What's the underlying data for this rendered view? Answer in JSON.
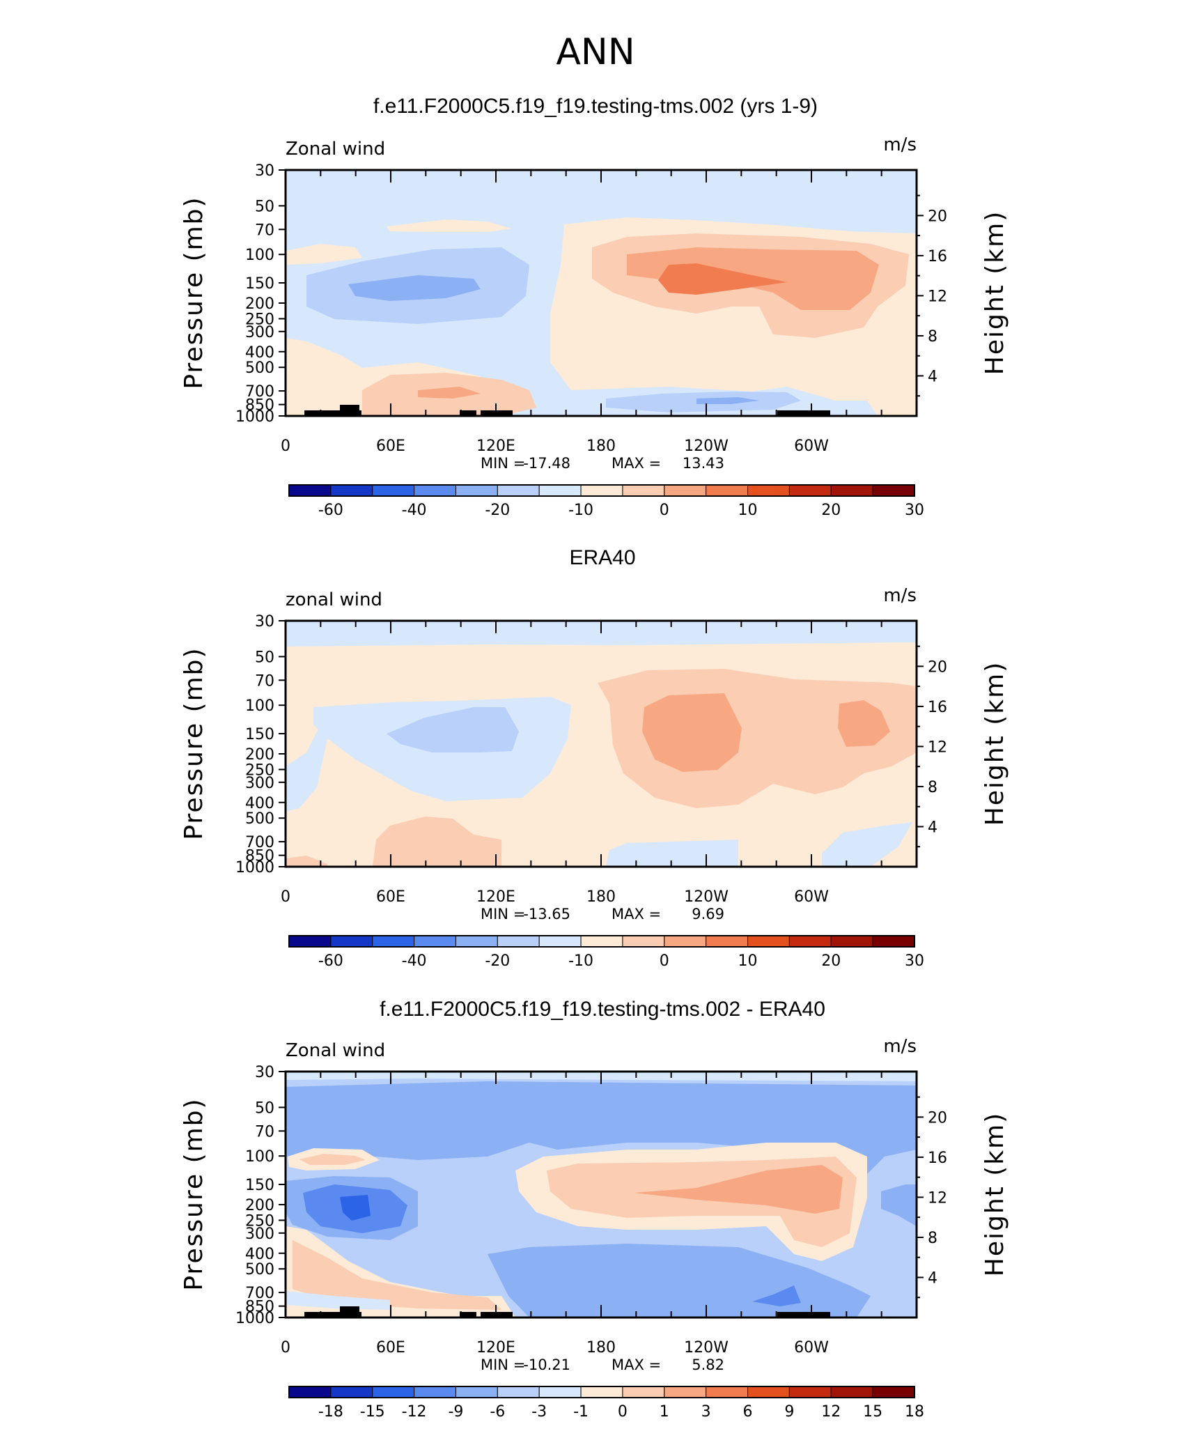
{
  "figure_title": "ANN",
  "colors": {
    "main_palette": [
      "#08088c",
      "#1437c8",
      "#2c64e8",
      "#5a8af0",
      "#8cb0f4",
      "#b8d0fa",
      "#d8e8fc",
      "#fdebd8",
      "#fbcdb2",
      "#f7a882",
      "#f07c50",
      "#e4501e",
      "#c42a10",
      "#a01408",
      "#780000"
    ],
    "diff_palette": [
      "#08088c",
      "#1437c8",
      "#2c64e8",
      "#5a8af0",
      "#8cb0f4",
      "#b8d0fa",
      "#d8e8fc",
      "#fdebd8",
      "#fbcdb2",
      "#f7a882",
      "#f07c50",
      "#e4501e",
      "#c42a10",
      "#a01408",
      "#780000"
    ],
    "topography": "#000000"
  },
  "chart_data": [
    {
      "type": "heatmap",
      "title": "f.e11.F2000C5.f19_f19.testing-tms.002 (yrs 1-9)",
      "left_string": "Zonal wind",
      "right_string": "m/s",
      "ylabel": "Pressure (mb)",
      "ylabel_right": "Height (km)",
      "x_ticks": [
        "0",
        "60E",
        "120E",
        "180",
        "120W",
        "60W"
      ],
      "y_ticks": [
        "30",
        "50",
        "70",
        "100",
        "150",
        "200",
        "250",
        "300",
        "400",
        "500",
        "700",
        "850",
        "1000"
      ],
      "y_right_ticks": [
        "20",
        "16",
        "12",
        "8",
        "4"
      ],
      "xlim": [
        0,
        360
      ],
      "ylim": [
        1000,
        30
      ],
      "stats": {
        "min_label": "MIN =",
        "min": "-17.48",
        "max_label": "MAX =",
        "max": "13.43"
      },
      "colorbar_labels": [
        "-60",
        "-40",
        "-20",
        "-10",
        "0",
        "10",
        "20",
        "30"
      ],
      "features": [
        {
          "kind": "jet-core-easterly",
          "lon_range": [
            15,
            165
          ],
          "level": 150,
          "value": -17.48
        },
        {
          "kind": "jet-core-westerly",
          "lon_range": [
            190,
            335
          ],
          "level": 150,
          "value": 13.43
        },
        {
          "kind": "low-level-westerly",
          "lon_range": [
            40,
            140
          ],
          "level": 850,
          "value": 8
        },
        {
          "kind": "low-level-easterly",
          "lon_range": [
            180,
            320
          ],
          "level": 850,
          "value": -8
        }
      ]
    },
    {
      "type": "heatmap",
      "title": "ERA40",
      "left_string": "zonal wind",
      "right_string": "m/s",
      "ylabel": "Pressure (mb)",
      "ylabel_right": "Height (km)",
      "x_ticks": [
        "0",
        "60E",
        "120E",
        "180",
        "120W",
        "60W"
      ],
      "y_ticks": [
        "30",
        "50",
        "70",
        "100",
        "150",
        "200",
        "250",
        "300",
        "400",
        "500",
        "700",
        "850",
        "1000"
      ],
      "y_right_ticks": [
        "20",
        "16",
        "12",
        "8",
        "4"
      ],
      "xlim": [
        0,
        360
      ],
      "ylim": [
        1000,
        30
      ],
      "stats": {
        "min_label": "MIN =",
        "min": "-13.65",
        "max_label": "MAX =",
        "max": "9.69"
      },
      "colorbar_labels": [
        "-60",
        "-40",
        "-20",
        "-10",
        "0",
        "10",
        "20",
        "30"
      ],
      "features": [
        {
          "kind": "jet-core-easterly",
          "lon_range": [
            55,
            135
          ],
          "level": 150,
          "value": -13.65
        },
        {
          "kind": "jet-core-westerly",
          "lon_range": [
            200,
            260
          ],
          "level": 150,
          "value": 9.69
        },
        {
          "kind": "jet-core-westerly",
          "lon_range": [
            300,
            335
          ],
          "level": 150,
          "value": 8
        }
      ]
    },
    {
      "type": "heatmap",
      "title": "f.e11.F2000C5.f19_f19.testing-tms.002 - ERA40",
      "left_string": "Zonal wind",
      "right_string": "m/s",
      "ylabel": "Pressure (mb)",
      "ylabel_right": "Height (km)",
      "x_ticks": [
        "0",
        "60E",
        "120E",
        "180",
        "120W",
        "60W"
      ],
      "y_ticks": [
        "30",
        "50",
        "70",
        "100",
        "150",
        "200",
        "250",
        "300",
        "400",
        "500",
        "700",
        "850",
        "1000"
      ],
      "y_right_ticks": [
        "20",
        "16",
        "12",
        "8",
        "4"
      ],
      "xlim": [
        0,
        360
      ],
      "ylim": [
        1000,
        30
      ],
      "stats": {
        "min_label": "MIN =",
        "min": "-10.21",
        "max_label": "MAX =",
        "max": "5.82"
      },
      "colorbar_labels": [
        "-18",
        "-15",
        "-12",
        "-9",
        "-6",
        "-3",
        "-1",
        "0",
        "1",
        "3",
        "6",
        "9",
        "12",
        "15",
        "18"
      ],
      "features": [
        {
          "kind": "difference-minimum",
          "lon_range": [
            10,
            70
          ],
          "level": 150,
          "value": -10.21
        },
        {
          "kind": "difference-maximum",
          "lon_range": [
            150,
            320
          ],
          "level": 150,
          "value": 5.82
        }
      ]
    }
  ]
}
